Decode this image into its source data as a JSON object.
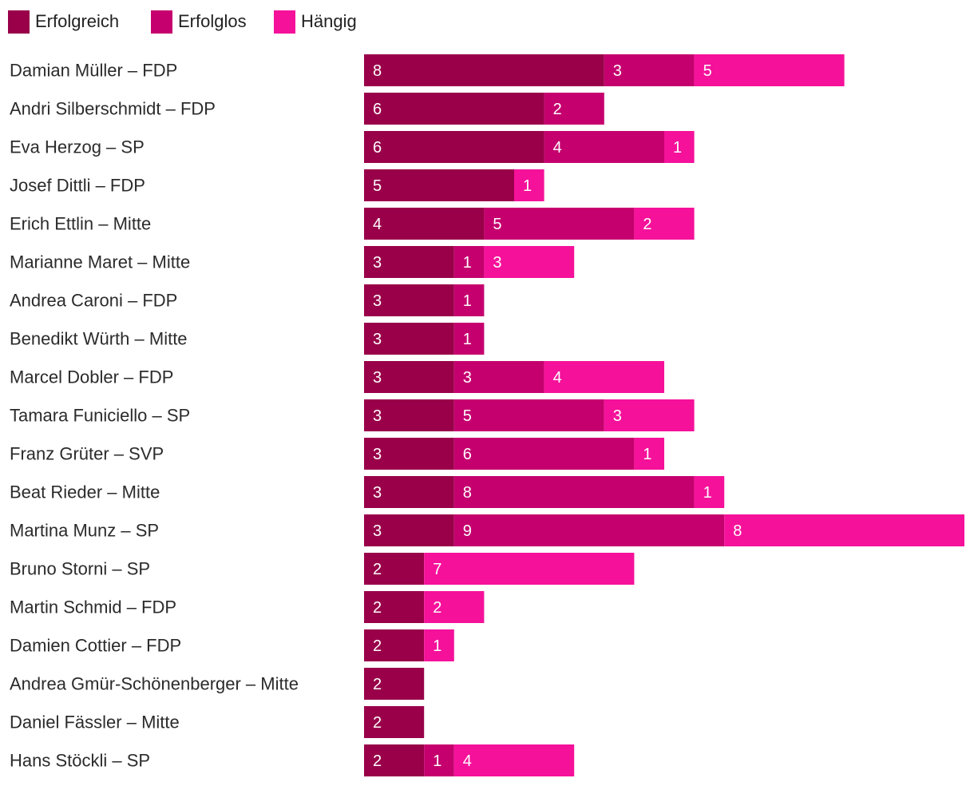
{
  "chart_data": {
    "type": "bar",
    "orientation": "horizontal",
    "stacked": true,
    "legend_position": "top-left",
    "legend": [
      {
        "name": "Erfolgreich",
        "color": "#990049"
      },
      {
        "name": "Erfolglos",
        "color": "#c5006e"
      },
      {
        "name": "Hängig",
        "color": "#f5119a"
      }
    ],
    "categories": [
      "Damian Müller – FDP",
      "Andri Silberschmidt – FDP",
      "Eva Herzog – SP",
      "Josef Dittli – FDP",
      "Erich Ettlin – Mitte",
      "Marianne Maret – Mitte",
      "Andrea Caroni – FDP",
      "Benedikt Würth – Mitte",
      "Marcel Dobler – FDP",
      "Tamara Funiciello – SP",
      "Franz Grüter – SVP",
      "Beat Rieder – Mitte",
      "Martina Munz – SP",
      "Bruno Storni – SP",
      "Martin Schmid – FDP",
      "Damien Cottier – FDP",
      "Andrea Gmür-Schönenberger – Mitte",
      "Daniel Fässler – Mitte",
      "Hans Stöckli – SP"
    ],
    "series": [
      {
        "name": "Erfolgreich",
        "color": "#990049",
        "values": [
          8,
          6,
          6,
          5,
          4,
          3,
          3,
          3,
          3,
          3,
          3,
          3,
          3,
          2,
          2,
          2,
          2,
          2,
          2
        ]
      },
      {
        "name": "Erfolglos",
        "color": "#c5006e",
        "values": [
          3,
          2,
          4,
          0,
          5,
          1,
          1,
          1,
          3,
          5,
          6,
          8,
          9,
          0,
          0,
          0,
          0,
          0,
          1
        ]
      },
      {
        "name": "Hängig",
        "color": "#f5119a",
        "values": [
          5,
          0,
          1,
          1,
          2,
          3,
          0,
          0,
          4,
          3,
          1,
          1,
          8,
          7,
          2,
          1,
          0,
          0,
          4
        ]
      }
    ],
    "xlim": [
      0,
      20
    ],
    "grid": false,
    "axes_visible": false
  }
}
